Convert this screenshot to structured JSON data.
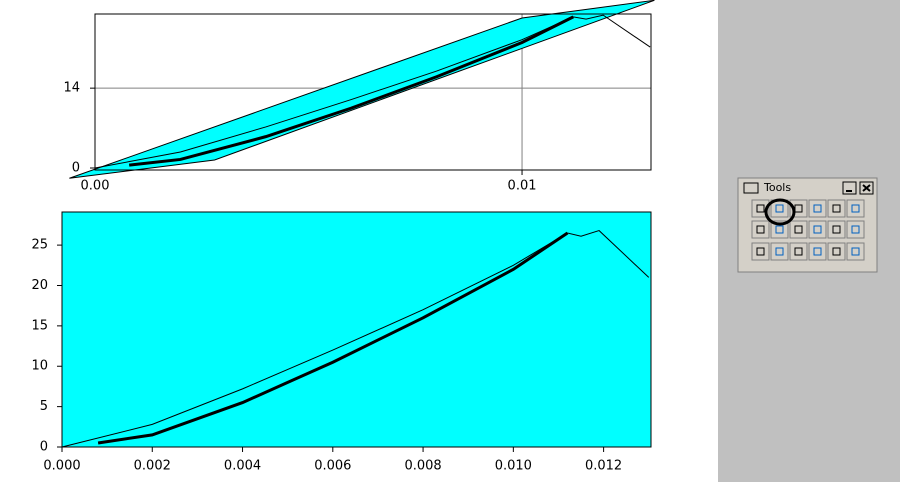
{
  "chart_data": [
    {
      "type": "line",
      "background": "#ffffff",
      "grid": true,
      "grid_color": "#808080",
      "xlim": [
        0,
        0.01302
      ],
      "ylim": [
        -0.35,
        27
      ],
      "xticks": [
        {
          "value": 0,
          "label": "0.00"
        },
        {
          "value": 0.01,
          "label": "0.01"
        }
      ],
      "yticks": [
        0,
        14
      ],
      "band": {
        "color": "#00ffff",
        "x": [
          -0.0006,
          0.0028,
          0.0131,
          0.01
        ],
        "values": [
          -1.8,
          1.4,
          29.4,
          26.3
        ]
      },
      "series": [
        {
          "color": "#000000",
          "width": 1,
          "x": [
            0,
            0.002,
            0.004,
            0.006,
            0.008,
            0.01,
            0.0112,
            0.0115,
            0.0119,
            0.013
          ],
          "values": [
            0,
            2.8,
            7.2,
            12,
            17,
            22.5,
            26.5,
            26.1,
            26.8,
            21.2
          ]
        },
        {
          "color": "#000000",
          "width": 3,
          "x": [
            0.0008,
            0.002,
            0.004,
            0.006,
            0.008,
            0.01,
            0.0112
          ],
          "values": [
            0.5,
            1.5,
            5.5,
            10.5,
            16,
            22,
            26.5
          ]
        }
      ]
    },
    {
      "type": "line",
      "background": "#00ffff",
      "grid": false,
      "xlim": [
        0,
        0.01305
      ],
      "ylim": [
        0,
        29.1
      ],
      "xticks": [
        {
          "value": 0,
          "label": "0.000"
        },
        {
          "value": 0.002,
          "label": "0.002"
        },
        {
          "value": 0.004,
          "label": "0.004"
        },
        {
          "value": 0.006,
          "label": "0.006"
        },
        {
          "value": 0.008,
          "label": "0.008"
        },
        {
          "value": 0.01,
          "label": "0.010"
        },
        {
          "value": 0.012,
          "label": "0.012"
        }
      ],
      "yticks": [
        0,
        5,
        10,
        15,
        20,
        25
      ],
      "series": [
        {
          "color": "#000000",
          "width": 1,
          "x": [
            0,
            0.002,
            0.004,
            0.006,
            0.008,
            0.01,
            0.0112,
            0.0115,
            0.0119,
            0.013
          ],
          "values": [
            0,
            2.8,
            7.2,
            12,
            17,
            22.5,
            26.5,
            26.1,
            26.8,
            21
          ]
        },
        {
          "color": "#000000",
          "width": 3,
          "x": [
            0.0008,
            0.002,
            0.004,
            0.006,
            0.008,
            0.01,
            0.0112
          ],
          "values": [
            0.5,
            1.5,
            5.5,
            10.5,
            16,
            22,
            26.5
          ]
        }
      ]
    }
  ],
  "tools_window": {
    "title": "Tools"
  }
}
